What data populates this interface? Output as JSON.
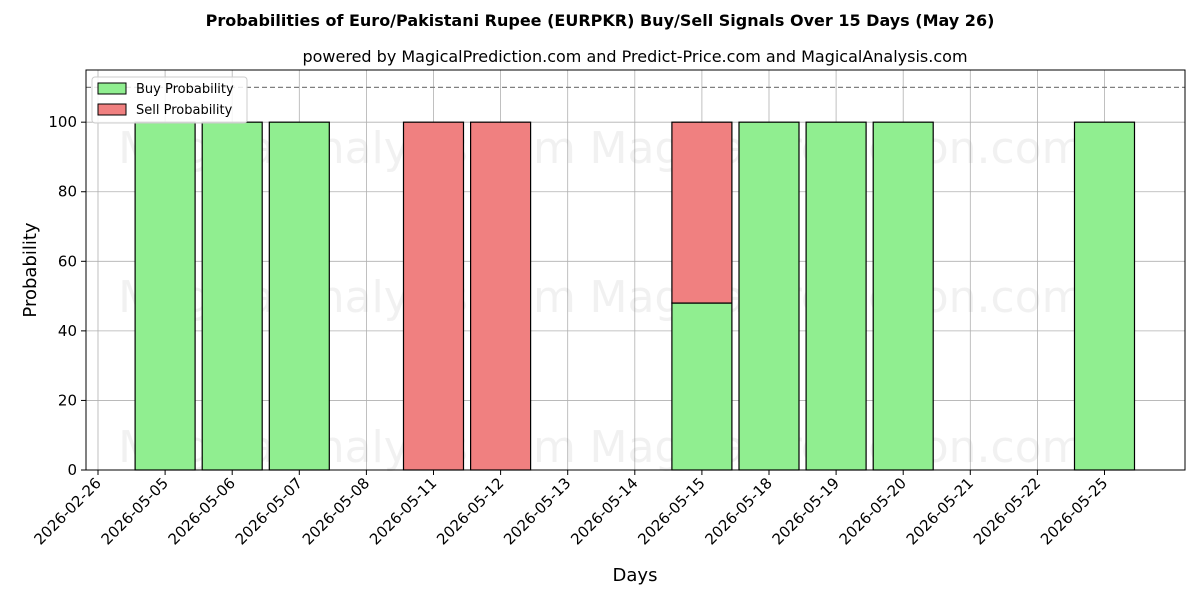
{
  "chart_data": {
    "type": "bar",
    "title": "Probabilities of Euro/Pakistani Rupee (EURPKR) Buy/Sell Signals Over 15 Days (May 26)",
    "subtitle": "powered by MagicalPrediction.com and Predict-Price.com and MagicalAnalysis.com",
    "xlabel": "Days",
    "ylabel": "Probability",
    "ylim": [
      0,
      115
    ],
    "yticks": [
      0,
      20,
      40,
      60,
      80,
      100
    ],
    "reference_line": 110,
    "grid": true,
    "legend_position": "top-left",
    "categories": [
      "2026-02-26",
      "2026-05-05",
      "2026-05-06",
      "2026-05-07",
      "2026-05-08",
      "2026-05-11",
      "2026-05-12",
      "2026-05-13",
      "2026-05-14",
      "2026-05-15",
      "2026-05-18",
      "2026-05-19",
      "2026-05-20",
      "2026-05-21",
      "2026-05-22",
      "2026-05-25"
    ],
    "series": [
      {
        "name": "Buy Probability",
        "color": "#90ee90",
        "values": [
          0,
          100,
          100,
          100,
          0,
          0,
          0,
          0,
          0,
          48,
          100,
          100,
          100,
          0,
          0,
          100
        ]
      },
      {
        "name": "Sell Probability",
        "color": "#f08080",
        "values": [
          0,
          0,
          0,
          0,
          0,
          100,
          100,
          0,
          0,
          52,
          0,
          0,
          0,
          0,
          0,
          0
        ]
      }
    ],
    "watermarks": [
      "MagicalAnalysis.com",
      "MagicalPrediction.com"
    ]
  }
}
